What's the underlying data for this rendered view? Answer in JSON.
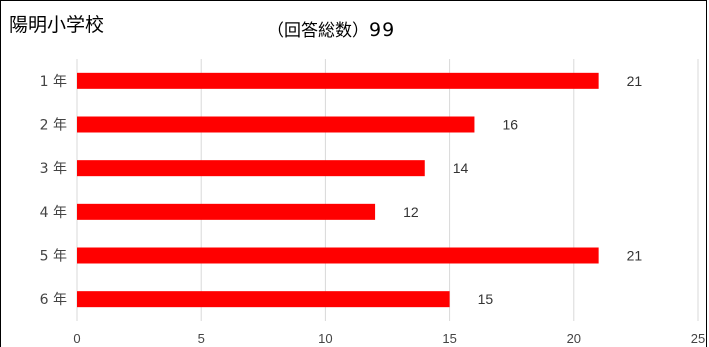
{
  "header": {
    "school": "陽明小学校",
    "respondents_label": "（回答総数）",
    "respondents_count": "99"
  },
  "colors": {
    "bar": "#ff0000",
    "grid": "#d9d9d9"
  },
  "chart_data": {
    "type": "bar",
    "orientation": "horizontal",
    "title": "",
    "xlabel": "",
    "ylabel": "",
    "categories": [
      "1年",
      "2年",
      "3年",
      "4年",
      "5年",
      "6年"
    ],
    "category_labels": [
      "1 年",
      "2 年",
      "3 年",
      "4 年",
      "5 年",
      "6 年"
    ],
    "values": [
      21,
      16,
      14,
      12,
      21,
      15
    ],
    "xlim": [
      0,
      25
    ],
    "xticks": [
      0,
      5,
      10,
      15,
      20,
      25
    ],
    "grid": true,
    "legend": "none",
    "data_labels": true
  }
}
